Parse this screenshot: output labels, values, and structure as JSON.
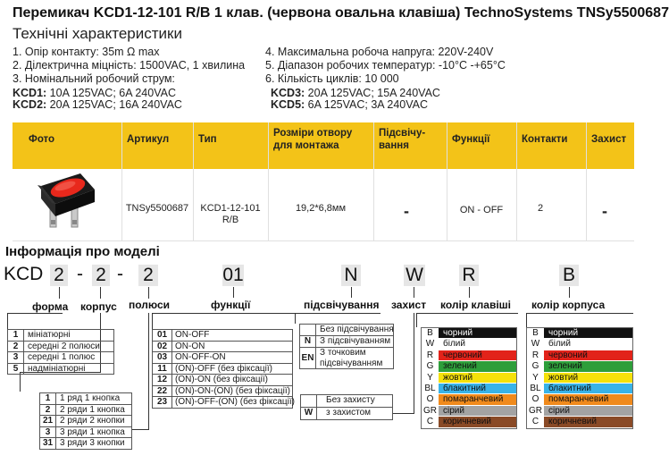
{
  "title": "Перемикач KCD1-12-101 R/B 1 клав. (червона овальна клавіша) TechnoSystems TNSy5500687",
  "specs_heading": "Технічні характеристики",
  "specs_left": [
    "1. Опір контакту: 35m Ω  max",
    "2. Ділектрична міцність:  1500VAC, 1 хвилина",
    "3. Номінальний робочий струм:"
  ],
  "specs_right": [
    "4. Максимальна робоча напруга: 220V-240V",
    "5. Діапазон робочих температур: -10°C -+65°C",
    "6. Кількість циклів: 10 000"
  ],
  "currents": [
    {
      "model": "KCD1:",
      "value": " 10A 125VAC; 6A 240VAC"
    },
    {
      "model": "KCD2:",
      "value": " 20A 125VAC; 16A 240VAC"
    },
    {
      "model": "KCD3:",
      "value": " 20A 125VAC; 15A 240VAC"
    },
    {
      "model": "KCD5:",
      "value": " 6A 125VAC; 3A 240VAC"
    }
  ],
  "table": {
    "headers": [
      "Фото",
      "Артикул",
      "Тип",
      "Розміри отвору для монтажа",
      "Підсвічу-вання",
      "Функції",
      "Контакти",
      "Захист"
    ],
    "row": {
      "article": "TNSy5500687",
      "type": "KCD1-12-101 R/B",
      "size": "19,2*6,8мм",
      "backlight": "-",
      "functions": "ON - OFF",
      "contacts": "2",
      "protection": "-"
    }
  },
  "model_heading": "Інформація про моделі",
  "code": {
    "prefix": "KCD",
    "parts": [
      "2",
      "2",
      "2",
      "01",
      "N",
      "W",
      "R",
      "B"
    ],
    "sep": "-"
  },
  "labels": {
    "form": "форма",
    "body": "корпус",
    "poles": "полюси",
    "functions": "функції",
    "backlight": "підсвічування",
    "protection": "захист",
    "key_color": "колір клавіші",
    "body_color": "колір корпуса"
  },
  "form_options": [
    {
      "k": "1",
      "v": "мініатюрні"
    },
    {
      "k": "2",
      "v": "середні 2 полюси"
    },
    {
      "k": "3",
      "v": "середні 1 полюс"
    },
    {
      "k": "5",
      "v": "надмініатюрні"
    }
  ],
  "row_options": [
    {
      "k": "1",
      "v": "1 ряд 1 кнопка"
    },
    {
      "k": "2",
      "v": "2 ряди 1 кнопка"
    },
    {
      "k": "21",
      "v": "2 ряди 2 кнопки"
    },
    {
      "k": "3",
      "v": "3 ряди 1 кнопка"
    },
    {
      "k": "31",
      "v": "3 ряди 3 кнопки"
    }
  ],
  "function_options": [
    {
      "k": "01",
      "v": "ON-OFF"
    },
    {
      "k": "02",
      "v": "ON-ON"
    },
    {
      "k": "03",
      "v": "ON-OFF-ON"
    },
    {
      "k": "11",
      "v": "(ON)-OFF (без фіксації)"
    },
    {
      "k": "12",
      "v": "(ON)-ON (без фіксації)"
    },
    {
      "k": "22",
      "v": "(ON)-ON-(ON) (без фіксації)"
    },
    {
      "k": "23",
      "v": "(ON)-OFF-(ON) (без фіксації)"
    }
  ],
  "backlight_options": [
    {
      "k": "",
      "v": "Без підсвічування"
    },
    {
      "k": "N",
      "v": "З підсвічуванням"
    },
    {
      "k": "EN",
      "v": "З точковим підсвічуванням"
    }
  ],
  "protection_options": [
    {
      "k": "",
      "v": "Без захисту"
    },
    {
      "k": "W",
      "v": "з захистом"
    }
  ],
  "colors": [
    {
      "k": "B",
      "v": "чорний",
      "bg": "#111111",
      "fg": "#ffffff"
    },
    {
      "k": "W",
      "v": "білий",
      "bg": "#ffffff",
      "fg": "#111111"
    },
    {
      "k": "R",
      "v": "червоний",
      "bg": "#e2231a",
      "fg": "#111111"
    },
    {
      "k": "G",
      "v": "зелений",
      "bg": "#2e9e3a",
      "fg": "#111111"
    },
    {
      "k": "Y",
      "v": "жовтий",
      "bg": "#f5e10a",
      "fg": "#111111"
    },
    {
      "k": "BL",
      "v": "блакитний",
      "bg": "#39b3e8",
      "fg": "#111111"
    },
    {
      "k": "O",
      "v": "помаранчевий",
      "bg": "#f08a1c",
      "fg": "#111111"
    },
    {
      "k": "GR",
      "v": "сірий",
      "bg": "#a3a3a3",
      "fg": "#111111"
    },
    {
      "k": "C",
      "v": "коричневий",
      "bg": "#8a4a26",
      "fg": "#111111"
    }
  ]
}
